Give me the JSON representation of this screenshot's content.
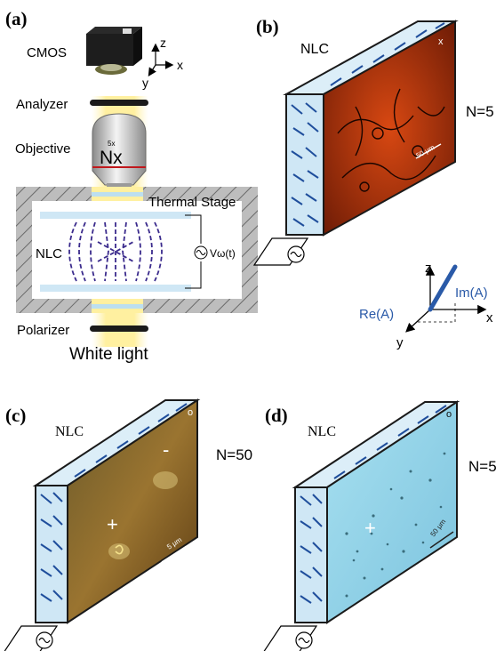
{
  "panels": {
    "a": {
      "tag": "(a)",
      "camera_label": "CMOS",
      "axes": {
        "z": "z",
        "x": "x",
        "y": "y"
      },
      "analyzer_label": "Analyzer",
      "objective_label": "Objective",
      "objective_mark": "Nx",
      "objective_mark_small": "5x",
      "stage_label": "Thermal Stage",
      "sample_label": "NLC",
      "voltage_label": "Vω(t)",
      "polarizer_label": "Polarizer",
      "light_label": "White light"
    },
    "b": {
      "tag": "(b)",
      "sample_label": "NLC",
      "count_label": "N=5",
      "scalebar_label": "50 μm",
      "corner_mark": "x",
      "axes": {
        "z": "z",
        "x": "x",
        "y": "y",
        "re": "Re(A)",
        "im": "Im(A)"
      }
    },
    "c": {
      "tag": "(c)",
      "sample_label": "NLC",
      "count_label": "N=50",
      "plus_mark": "+",
      "minus_mark": "-",
      "scalebar_label": "5 μm",
      "corner_mark": "o"
    },
    "d": {
      "tag": "(d)",
      "sample_label": "NLC",
      "count_label": "N=5",
      "plus_mark": "+",
      "scalebar_label": "50 μm",
      "corner_mark": "o"
    }
  },
  "colors": {
    "glass": "#cfe7f5",
    "glass_edge": "#1a1a1a",
    "molecule": "#1f4e9c",
    "director_dash": "#3a2a8c",
    "beam": "#fff1a8",
    "stage": "#9e9e9e",
    "texture_b": "#c2380e",
    "texture_c": "#8a6a22",
    "texture_d": "#8fd0e6",
    "accent_blue": "#2a5aa8"
  }
}
